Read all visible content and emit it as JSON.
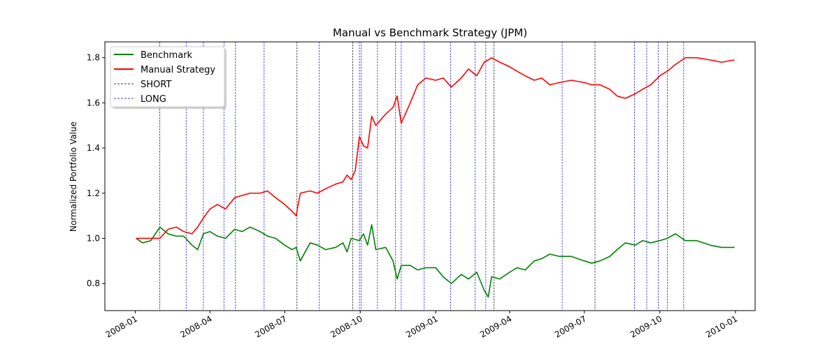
{
  "chart_data": {
    "type": "line",
    "title": "Manual vs Benchmark Strategy (JPM)",
    "xlabel": "",
    "ylabel": "Normalized Portfolio Value",
    "xlim": [
      "2007-11-25",
      "2010-01-25"
    ],
    "ylim": [
      0.68,
      1.87
    ],
    "grid": false,
    "legend_position": "top-left",
    "x_ticks": [
      {
        "date": "2008-01-01",
        "label": "2008-01"
      },
      {
        "date": "2008-04-01",
        "label": "2008-04"
      },
      {
        "date": "2008-07-01",
        "label": "2008-07"
      },
      {
        "date": "2008-10-01",
        "label": "2008-10"
      },
      {
        "date": "2009-01-01",
        "label": "2009-01"
      },
      {
        "date": "2009-04-01",
        "label": "2009-04"
      },
      {
        "date": "2009-07-01",
        "label": "2009-07"
      },
      {
        "date": "2009-10-01",
        "label": "2009-10"
      },
      {
        "date": "2010-01-01",
        "label": "2010-01"
      }
    ],
    "y_ticks": [
      {
        "value": 0.8,
        "label": "0.8"
      },
      {
        "value": 1.0,
        "label": "1.0"
      },
      {
        "value": 1.2,
        "label": "1.2"
      },
      {
        "value": 1.4,
        "label": "1.4"
      },
      {
        "value": 1.6,
        "label": "1.6"
      },
      {
        "value": 1.8,
        "label": "1.8"
      }
    ],
    "series": [
      {
        "name": "Benchmark",
        "color": "#008000",
        "x": [
          "2008-01-02",
          "2008-01-10",
          "2008-01-20",
          "2008-01-31",
          "2008-02-10",
          "2008-02-20",
          "2008-02-29",
          "2008-03-10",
          "2008-03-17",
          "2008-03-24",
          "2008-04-01",
          "2008-04-10",
          "2008-04-20",
          "2008-05-01",
          "2008-05-10",
          "2008-05-20",
          "2008-06-01",
          "2008-06-10",
          "2008-06-20",
          "2008-07-01",
          "2008-07-10",
          "2008-07-15",
          "2008-07-20",
          "2008-08-01",
          "2008-08-10",
          "2008-08-20",
          "2008-09-01",
          "2008-09-10",
          "2008-09-15",
          "2008-09-20",
          "2008-09-30",
          "2008-10-05",
          "2008-10-10",
          "2008-10-15",
          "2008-10-20",
          "2008-11-01",
          "2008-11-10",
          "2008-11-15",
          "2008-11-20",
          "2008-12-01",
          "2008-12-10",
          "2008-12-20",
          "2009-01-01",
          "2009-01-10",
          "2009-01-20",
          "2009-02-01",
          "2009-02-10",
          "2009-02-20",
          "2009-03-01",
          "2009-03-06",
          "2009-03-10",
          "2009-03-20",
          "2009-04-01",
          "2009-04-10",
          "2009-04-20",
          "2009-05-01",
          "2009-05-10",
          "2009-05-20",
          "2009-06-01",
          "2009-06-15",
          "2009-07-01",
          "2009-07-10",
          "2009-07-20",
          "2009-08-01",
          "2009-08-10",
          "2009-08-20",
          "2009-09-01",
          "2009-09-10",
          "2009-09-20",
          "2009-10-01",
          "2009-10-10",
          "2009-10-20",
          "2009-11-01",
          "2009-11-15",
          "2009-12-01",
          "2009-12-15",
          "2009-12-31"
        ],
        "values": [
          1.0,
          0.98,
          0.99,
          1.05,
          1.02,
          1.01,
          1.01,
          0.97,
          0.95,
          1.02,
          1.03,
          1.01,
          1.0,
          1.04,
          1.03,
          1.05,
          1.03,
          1.01,
          1.0,
          0.97,
          0.95,
          0.96,
          0.9,
          0.98,
          0.97,
          0.95,
          0.96,
          0.98,
          0.94,
          1.0,
          0.99,
          1.02,
          0.97,
          1.06,
          0.95,
          0.96,
          0.9,
          0.82,
          0.88,
          0.88,
          0.86,
          0.87,
          0.87,
          0.83,
          0.8,
          0.84,
          0.82,
          0.85,
          0.77,
          0.74,
          0.83,
          0.82,
          0.85,
          0.87,
          0.86,
          0.9,
          0.91,
          0.93,
          0.92,
          0.92,
          0.9,
          0.89,
          0.9,
          0.92,
          0.95,
          0.98,
          0.97,
          0.99,
          0.98,
          0.99,
          1.0,
          1.02,
          0.99,
          0.99,
          0.97,
          0.96,
          0.96
        ]
      },
      {
        "name": "Manual Strategy",
        "color": "#ff0000",
        "x": [
          "2008-01-02",
          "2008-01-31",
          "2008-02-10",
          "2008-02-20",
          "2008-02-29",
          "2008-03-10",
          "2008-03-17",
          "2008-03-24",
          "2008-04-01",
          "2008-04-10",
          "2008-04-20",
          "2008-05-01",
          "2008-05-10",
          "2008-05-20",
          "2008-06-01",
          "2008-06-10",
          "2008-06-20",
          "2008-07-01",
          "2008-07-10",
          "2008-07-15",
          "2008-07-20",
          "2008-08-01",
          "2008-08-10",
          "2008-08-20",
          "2008-09-01",
          "2008-09-10",
          "2008-09-15",
          "2008-09-20",
          "2008-09-25",
          "2008-09-30",
          "2008-10-05",
          "2008-10-10",
          "2008-10-15",
          "2008-10-20",
          "2008-11-01",
          "2008-11-10",
          "2008-11-15",
          "2008-11-20",
          "2008-12-01",
          "2008-12-10",
          "2008-12-20",
          "2009-01-01",
          "2009-01-10",
          "2009-01-20",
          "2009-02-01",
          "2009-02-10",
          "2009-02-20",
          "2009-03-01",
          "2009-03-06",
          "2009-03-10",
          "2009-03-20",
          "2009-04-01",
          "2009-04-10",
          "2009-04-20",
          "2009-05-01",
          "2009-05-10",
          "2009-05-20",
          "2009-06-01",
          "2009-06-15",
          "2009-07-01",
          "2009-07-10",
          "2009-07-20",
          "2009-08-01",
          "2009-08-10",
          "2009-08-20",
          "2009-09-01",
          "2009-09-10",
          "2009-09-20",
          "2009-10-01",
          "2009-10-10",
          "2009-10-20",
          "2009-11-01",
          "2009-11-15",
          "2009-12-01",
          "2009-12-15",
          "2009-12-31"
        ],
        "values": [
          1.0,
          1.0,
          1.04,
          1.05,
          1.03,
          1.02,
          1.05,
          1.09,
          1.13,
          1.15,
          1.13,
          1.18,
          1.19,
          1.2,
          1.2,
          1.21,
          1.18,
          1.15,
          1.12,
          1.1,
          1.2,
          1.21,
          1.2,
          1.22,
          1.24,
          1.25,
          1.28,
          1.26,
          1.3,
          1.45,
          1.41,
          1.4,
          1.54,
          1.5,
          1.55,
          1.58,
          1.63,
          1.51,
          1.6,
          1.68,
          1.71,
          1.7,
          1.71,
          1.67,
          1.71,
          1.75,
          1.72,
          1.78,
          1.79,
          1.8,
          1.78,
          1.76,
          1.74,
          1.72,
          1.7,
          1.71,
          1.68,
          1.69,
          1.7,
          1.69,
          1.68,
          1.68,
          1.66,
          1.63,
          1.62,
          1.64,
          1.66,
          1.68,
          1.72,
          1.74,
          1.77,
          1.8,
          1.8,
          1.79,
          1.78,
          1.79
        ]
      }
    ],
    "signal_lines": [
      {
        "name": "SHORT",
        "color": "#000000",
        "dates": [
          "2008-01-31",
          "2008-07-16",
          "2008-09-22",
          "2009-03-13",
          "2009-07-14"
        ]
      },
      {
        "name": "LONG",
        "color": "#0000ff",
        "dates": [
          "2008-03-03",
          "2008-03-24",
          "2008-04-18",
          "2008-05-02",
          "2008-06-06",
          "2008-08-12",
          "2008-09-30",
          "2008-10-02",
          "2008-10-22",
          "2008-11-13",
          "2008-11-20",
          "2008-12-18",
          "2009-01-19",
          "2009-02-18",
          "2009-03-03",
          "2009-06-04",
          "2009-08-31",
          "2009-09-15",
          "2009-09-29",
          "2009-10-10",
          "2009-10-30"
        ]
      }
    ]
  },
  "legend": [
    {
      "label": "Benchmark",
      "color": "#008000",
      "style": "solid"
    },
    {
      "label": "Manual Strategy",
      "color": "#ff0000",
      "style": "solid"
    },
    {
      "label": "SHORT",
      "color": "#000000",
      "style": "dashed"
    },
    {
      "label": "LONG",
      "color": "#0000ff",
      "style": "dashed"
    }
  ]
}
